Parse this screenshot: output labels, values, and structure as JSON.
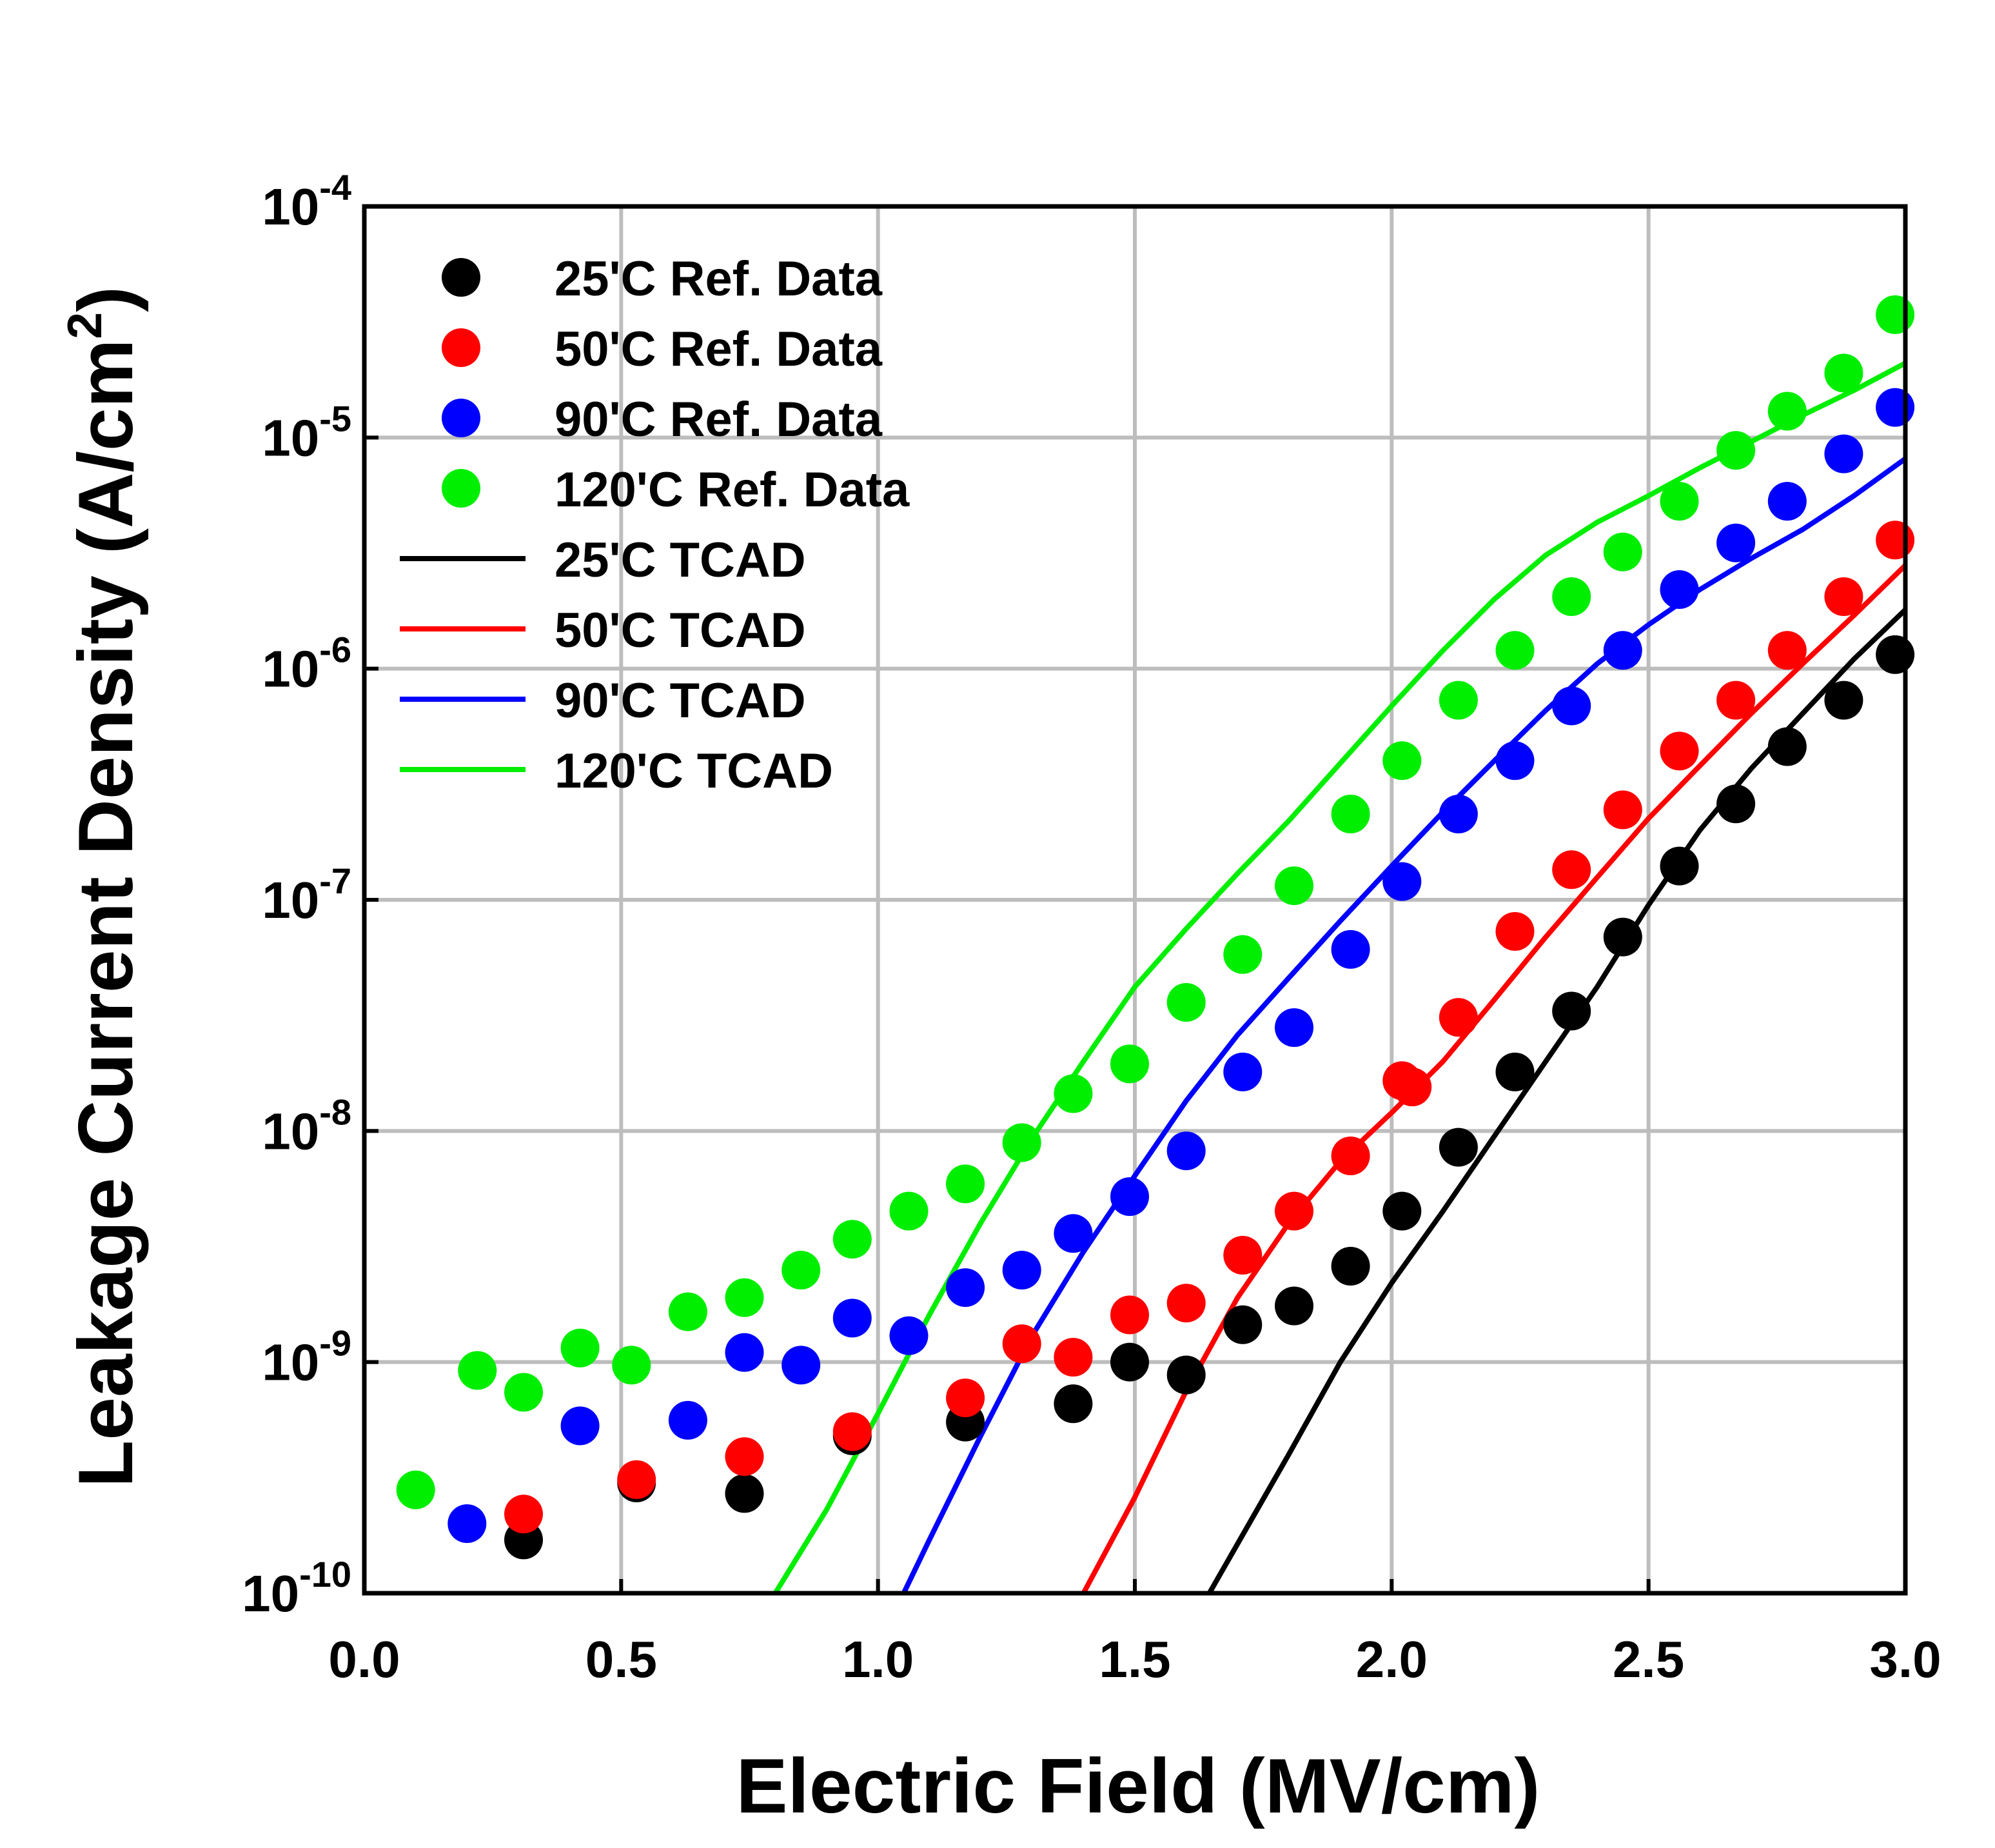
{
  "chart_data": {
    "type": "scatter",
    "title": "",
    "xlabel": "Electric Field (MV/cm)",
    "ylabel": "Leakage Current Density (A/cm",
    "ylabel_sup": "2",
    "ylabel_close": ")",
    "xlim": [
      0.0,
      3.0
    ],
    "ylim": [
      1e-10,
      0.0001
    ],
    "yscale": "log",
    "grid": true,
    "legend_position": "top-left",
    "x_ticks": [
      "0.0",
      "0.5",
      "1.0",
      "1.5",
      "2.0",
      "2.5",
      "3.0"
    ],
    "y_ticks": [
      {
        "base": "10",
        "exp": "-4"
      },
      {
        "base": "10",
        "exp": "-5"
      },
      {
        "base": "10",
        "exp": "-6"
      },
      {
        "base": "10",
        "exp": "-7"
      },
      {
        "base": "10",
        "exp": "-8"
      },
      {
        "base": "10",
        "exp": "-9"
      },
      {
        "base": "10",
        "exp": "-10"
      }
    ],
    "series": [
      {
        "name": "25'C Ref. Data",
        "kind": "points",
        "color": "#000000",
        "x": [
          0.31,
          0.53,
          0.74,
          0.95,
          1.17,
          1.38,
          1.49,
          1.6,
          1.71,
          1.81,
          1.92,
          2.02,
          2.13,
          2.24,
          2.35,
          2.45,
          2.56,
          2.67,
          2.77,
          2.88,
          2.98
        ],
        "y": [
          1.7e-10,
          3e-10,
          2.7e-10,
          4.8e-10,
          5.5e-10,
          6.6e-10,
          1e-09,
          8.8e-10,
          1.45e-09,
          1.75e-09,
          2.6e-09,
          4.5e-09,
          8.5e-09,
          1.8e-08,
          3.3e-08,
          6.9e-08,
          1.4e-07,
          2.6e-07,
          4.6e-07,
          7.3e-07,
          1.15e-06
        ]
      },
      {
        "name": "50'C Ref. Data",
        "kind": "points",
        "color": "#ff0000",
        "x": [
          0.31,
          0.53,
          0.74,
          0.95,
          1.17,
          1.28,
          1.38,
          1.49,
          1.6,
          1.71,
          1.81,
          1.92,
          2.02,
          2.04,
          2.13,
          2.24,
          2.35,
          2.45,
          2.56,
          2.67,
          2.77,
          2.88,
          2.98
        ],
        "y": [
          2.2e-10,
          3.1e-10,
          3.9e-10,
          5e-10,
          7e-10,
          1.2e-09,
          1.05e-09,
          1.6e-09,
          1.8e-09,
          2.9e-09,
          4.5e-09,
          7.8e-09,
          1.65e-08,
          1.55e-08,
          3.1e-08,
          7.3e-08,
          1.35e-07,
          2.45e-07,
          4.4e-07,
          7.3e-07,
          1.2e-06,
          2.05e-06,
          3.6e-06
        ]
      },
      {
        "name": "90'C Ref. Data",
        "kind": "points",
        "color": "#0000ff",
        "x": [
          0.2,
          0.42,
          0.63,
          0.74,
          0.85,
          0.95,
          1.06,
          1.17,
          1.28,
          1.38,
          1.49,
          1.6,
          1.71,
          1.81,
          1.92,
          2.02,
          2.13,
          2.24,
          2.35,
          2.45,
          2.56,
          2.67,
          2.77,
          2.88,
          2.98
        ],
        "y": [
          2e-10,
          5.3e-10,
          5.6e-10,
          1.1e-09,
          9.7e-10,
          1.55e-09,
          1.3e-09,
          2.1e-09,
          2.5e-09,
          3.6e-09,
          5.2e-09,
          8.2e-09,
          1.8e-08,
          2.8e-08,
          6.1e-08,
          1.2e-07,
          2.35e-07,
          4e-07,
          6.9e-07,
          1.2e-06,
          2.2e-06,
          3.5e-06,
          5.3e-06,
          8.5e-06,
          1.35e-05
        ]
      },
      {
        "name": "120'C Ref. Data",
        "kind": "points",
        "color": "#00ee00",
        "x": [
          0.1,
          0.22,
          0.31,
          0.42,
          0.52,
          0.63,
          0.74,
          0.85,
          0.95,
          1.06,
          1.17,
          1.28,
          1.38,
          1.49,
          1.6,
          1.71,
          1.81,
          1.92,
          2.02,
          2.13,
          2.24,
          2.35,
          2.45,
          2.56,
          2.67,
          2.77,
          2.88,
          2.98
        ],
        "y": [
          2.8e-10,
          9.2e-10,
          7.4e-10,
          1.15e-09,
          9.7e-10,
          1.65e-09,
          1.9e-09,
          2.5e-09,
          3.4e-09,
          4.5e-09,
          5.9e-09,
          8.9e-09,
          1.45e-08,
          1.95e-08,
          3.6e-08,
          5.8e-08,
          1.15e-07,
          2.35e-07,
          4e-07,
          7.3e-07,
          1.2e-06,
          2.05e-06,
          3.2e-06,
          5.3e-06,
          8.8e-06,
          1.3e-05,
          1.9e-05,
          3.4e-05
        ]
      },
      {
        "name": "25'C TCAD",
        "kind": "line",
        "color": "#000000",
        "x": [
          1.645,
          1.8,
          1.9,
          2.0,
          2.1,
          2.2,
          2.3,
          2.4,
          2.5,
          2.6,
          2.7,
          2.8,
          2.9,
          3.0
        ],
        "y": [
          1e-10,
          4e-10,
          1e-09,
          2.2e-09,
          4.5e-09,
          9.5e-09,
          2e-08,
          4.2e-08,
          9.5e-08,
          2e-07,
          3.7e-07,
          6.4e-07,
          1.1e-06,
          1.8e-06
        ]
      },
      {
        "name": "50'C TCAD",
        "kind": "line",
        "color": "#ff0000",
        "x": [
          1.4,
          1.5,
          1.6,
          1.7,
          1.8,
          1.9,
          2.0,
          2.1,
          2.2,
          2.3,
          2.4,
          2.5,
          2.6,
          2.7,
          2.8,
          2.9,
          3.0
        ],
        "y": [
          1e-10,
          2.6e-10,
          7.5e-10,
          1.9e-09,
          4e-09,
          7.4e-09,
          1.2e-08,
          2e-08,
          3.7e-08,
          6.9e-08,
          1.25e-07,
          2.25e-07,
          3.8e-07,
          6.4e-07,
          1.05e-06,
          1.7e-06,
          2.8e-06
        ]
      },
      {
        "name": "90'C TCAD",
        "kind": "line",
        "color": "#0000ff",
        "x": [
          1.05,
          1.1,
          1.2,
          1.3,
          1.4,
          1.5,
          1.6,
          1.7,
          1.8,
          1.9,
          2.0,
          2.1,
          2.2,
          2.3,
          2.4,
          2.5,
          2.6,
          2.7,
          2.8,
          2.9,
          3.0
        ],
        "y": [
          1e-10,
          1.7e-10,
          4.8e-10,
          1.3e-09,
          3e-09,
          6.4e-09,
          1.35e-08,
          2.6e-08,
          4.6e-08,
          8.1e-08,
          1.4e-07,
          2.4e-07,
          4e-07,
          6.6e-07,
          1.05e-06,
          1.55e-06,
          2.2e-06,
          3e-06,
          4e-06,
          5.6e-06,
          8.1e-06
        ]
      },
      {
        "name": "120'C TCAD",
        "kind": "line",
        "color": "#00ee00",
        "x": [
          0.8,
          0.9,
          1.0,
          1.1,
          1.2,
          1.3,
          1.4,
          1.5,
          1.6,
          1.7,
          1.8,
          1.9,
          2.0,
          2.1,
          2.2,
          2.3,
          2.4,
          2.5,
          2.6,
          2.7,
          2.8,
          2.9,
          3.0
        ],
        "y": [
          1e-10,
          2.3e-10,
          6e-10,
          1.6e-09,
          4e-09,
          9.3e-09,
          2e-08,
          4.2e-08,
          7.5e-08,
          1.3e-07,
          2.2e-07,
          3.9e-07,
          6.9e-07,
          1.2e-06,
          2e-06,
          3.1e-06,
          4.3e-06,
          5.6e-06,
          7.4e-06,
          9.6e-06,
          1.25e-05,
          1.6e-05,
          2.1e-05
        ]
      }
    ]
  }
}
